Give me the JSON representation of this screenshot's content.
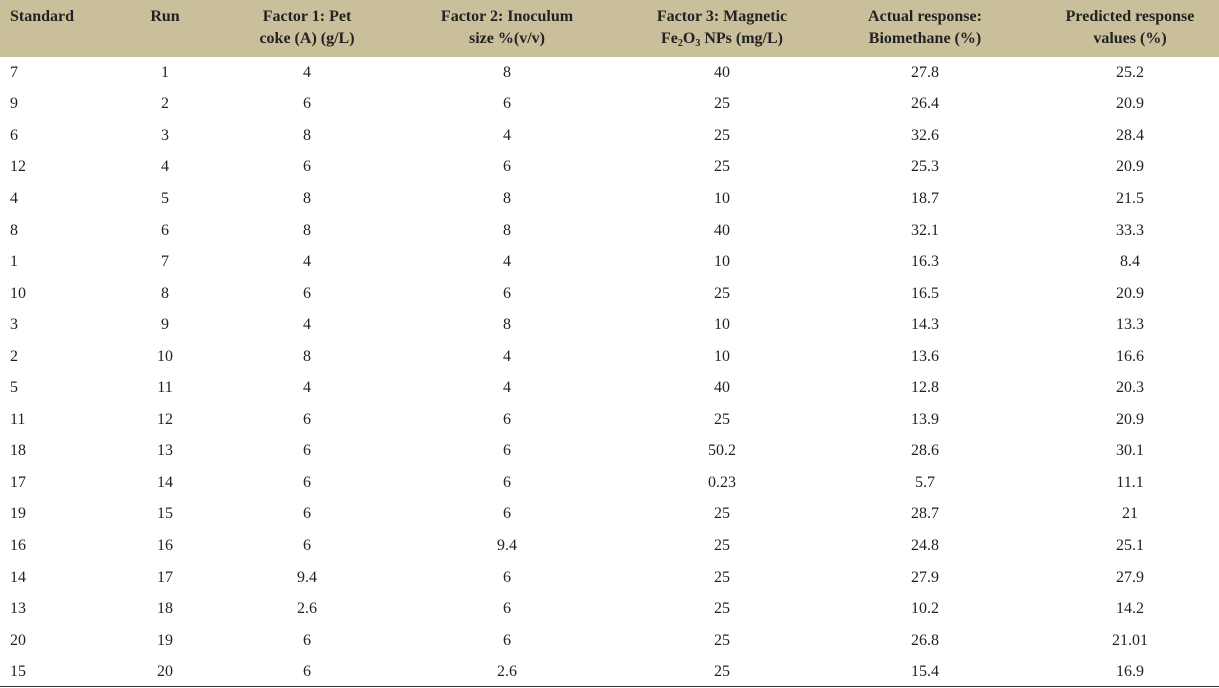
{
  "table": {
    "header": [
      [
        "Standard"
      ],
      [
        "Run"
      ],
      [
        "Factor 1: Pet",
        "coke (A) (g/L)"
      ],
      [
        "Factor 2: Inoculum",
        "size %(v/v)"
      ],
      [
        "Factor 3: Magnetic",
        [
          {
            "text": "Fe"
          },
          {
            "text": "2",
            "sub": true
          },
          {
            "text": "O"
          },
          {
            "text": "3",
            "sub": true
          },
          {
            "text": " NPs (mg/L)"
          }
        ]
      ],
      [
        "Actual response:",
        "Biomethane (%)"
      ],
      [
        "Predicted response",
        "values (%)"
      ]
    ],
    "rows": [
      [
        "7",
        "1",
        "4",
        "8",
        "40",
        "27.8",
        "25.2"
      ],
      [
        "9",
        "2",
        "6",
        "6",
        "25",
        "26.4",
        "20.9"
      ],
      [
        "6",
        "3",
        "8",
        "4",
        "25",
        "32.6",
        "28.4"
      ],
      [
        "12",
        "4",
        "6",
        "6",
        "25",
        "25.3",
        "20.9"
      ],
      [
        "4",
        "5",
        "8",
        "8",
        "10",
        "18.7",
        "21.5"
      ],
      [
        "8",
        "6",
        "8",
        "8",
        "40",
        "32.1",
        "33.3"
      ],
      [
        "1",
        "7",
        "4",
        "4",
        "10",
        "16.3",
        "8.4"
      ],
      [
        "10",
        "8",
        "6",
        "6",
        "25",
        "16.5",
        "20.9"
      ],
      [
        "3",
        "9",
        "4",
        "8",
        "10",
        "14.3",
        "13.3"
      ],
      [
        "2",
        "10",
        "8",
        "4",
        "10",
        "13.6",
        "16.6"
      ],
      [
        "5",
        "11",
        "4",
        "4",
        "40",
        "12.8",
        "20.3"
      ],
      [
        "11",
        "12",
        "6",
        "6",
        "25",
        "13.9",
        "20.9"
      ],
      [
        "18",
        "13",
        "6",
        "6",
        "50.2",
        "28.6",
        "30.1"
      ],
      [
        "17",
        "14",
        "6",
        "6",
        "0.23",
        "5.7",
        "11.1"
      ],
      [
        "19",
        "15",
        "6",
        "6",
        "25",
        "28.7",
        "21"
      ],
      [
        "16",
        "16",
        "6",
        "9.4",
        "25",
        "24.8",
        "25.1"
      ],
      [
        "14",
        "17",
        "9.4",
        "6",
        "25",
        "27.9",
        "27.9"
      ],
      [
        "13",
        "18",
        "2.6",
        "6",
        "25",
        "10.2",
        "14.2"
      ],
      [
        "20",
        "19",
        "6",
        "6",
        "25",
        "26.8",
        "21.01"
      ],
      [
        "15",
        "20",
        "6",
        "2.6",
        "25",
        "15.4",
        "16.9"
      ]
    ]
  }
}
